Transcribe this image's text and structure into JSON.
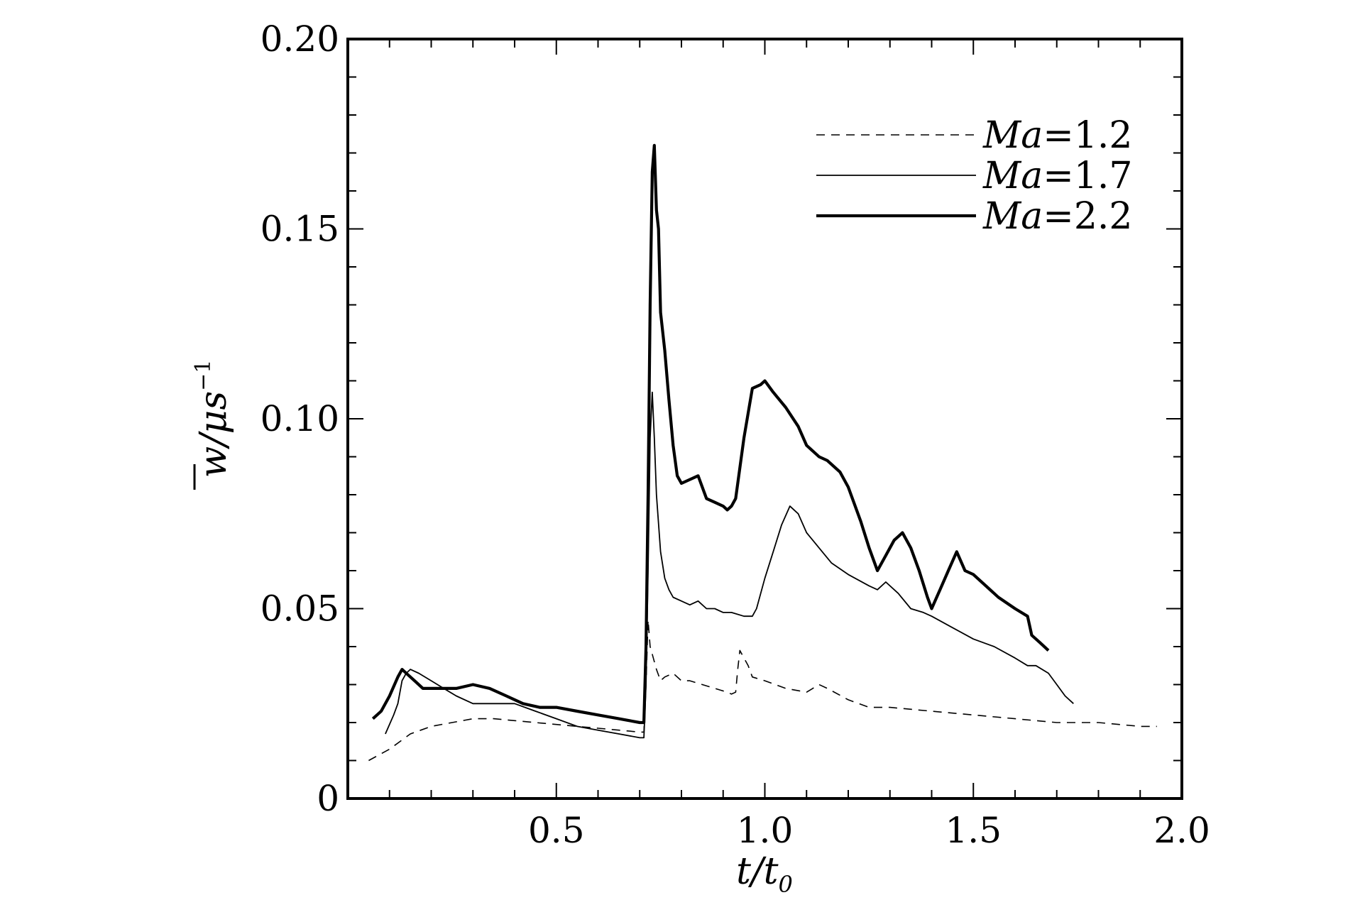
{
  "chart_data": {
    "type": "line",
    "xlabel": {
      "main": "t/t",
      "sub": "0"
    },
    "ylabel": {
      "main": "w/μs",
      "sup": "−1",
      "overbar_char": "w"
    },
    "xlim": [
      0,
      2.0
    ],
    "ylim": [
      0,
      0.2
    ],
    "x_ticks": [
      {
        "value": 0.5,
        "label": "0.5"
      },
      {
        "value": 1.0,
        "label": "1.0"
      },
      {
        "value": 1.5,
        "label": "1.5"
      },
      {
        "value": 2.0,
        "label": "2.0"
      }
    ],
    "y_ticks": [
      {
        "value": 0,
        "label": "0"
      },
      {
        "value": 0.05,
        "label": "0.05"
      },
      {
        "value": 0.1,
        "label": "0.10"
      },
      {
        "value": 0.15,
        "label": "0.15"
      },
      {
        "value": 0.2,
        "label": "0.20"
      }
    ],
    "x_minor_step": 0.1,
    "y_minor_step": 0.01,
    "grid": false,
    "legend_position": "top-right",
    "series": [
      {
        "name": "Ma=1.2",
        "name_italic": "Ma",
        "name_rest": "=1.2",
        "style": "dashed",
        "width": 1.6,
        "points": [
          [
            0.05,
            0.01
          ],
          [
            0.1,
            0.013
          ],
          [
            0.15,
            0.017
          ],
          [
            0.2,
            0.019
          ],
          [
            0.25,
            0.02
          ],
          [
            0.3,
            0.021
          ],
          [
            0.35,
            0.021
          ],
          [
            0.4,
            0.0205
          ],
          [
            0.45,
            0.02
          ],
          [
            0.5,
            0.0195
          ],
          [
            0.55,
            0.019
          ],
          [
            0.6,
            0.0185
          ],
          [
            0.65,
            0.018
          ],
          [
            0.7,
            0.0175
          ],
          [
            0.71,
            0.0175
          ],
          [
            0.715,
            0.03
          ],
          [
            0.72,
            0.047
          ],
          [
            0.725,
            0.04
          ],
          [
            0.73,
            0.038
          ],
          [
            0.74,
            0.034
          ],
          [
            0.75,
            0.031
          ],
          [
            0.76,
            0.032
          ],
          [
            0.78,
            0.033
          ],
          [
            0.8,
            0.031
          ],
          [
            0.82,
            0.031
          ],
          [
            0.85,
            0.03
          ],
          [
            0.88,
            0.029
          ],
          [
            0.91,
            0.028
          ],
          [
            0.92,
            0.0275
          ],
          [
            0.93,
            0.028
          ],
          [
            0.935,
            0.034
          ],
          [
            0.94,
            0.039
          ],
          [
            0.95,
            0.037
          ],
          [
            0.96,
            0.035
          ],
          [
            0.97,
            0.032
          ],
          [
            1.0,
            0.031
          ],
          [
            1.05,
            0.029
          ],
          [
            1.1,
            0.028
          ],
          [
            1.13,
            0.03
          ],
          [
            1.15,
            0.029
          ],
          [
            1.2,
            0.026
          ],
          [
            1.25,
            0.024
          ],
          [
            1.3,
            0.024
          ],
          [
            1.4,
            0.023
          ],
          [
            1.5,
            0.022
          ],
          [
            1.6,
            0.021
          ],
          [
            1.7,
            0.02
          ],
          [
            1.8,
            0.02
          ],
          [
            1.9,
            0.019
          ],
          [
            1.94,
            0.019
          ]
        ]
      },
      {
        "name": "Ma=1.7",
        "name_italic": "Ma",
        "name_rest": "=1.7",
        "style": "solid",
        "width": 1.8,
        "points": [
          [
            0.09,
            0.017
          ],
          [
            0.11,
            0.022
          ],
          [
            0.12,
            0.025
          ],
          [
            0.13,
            0.031
          ],
          [
            0.14,
            0.033
          ],
          [
            0.15,
            0.034
          ],
          [
            0.17,
            0.033
          ],
          [
            0.2,
            0.031
          ],
          [
            0.23,
            0.029
          ],
          [
            0.26,
            0.027
          ],
          [
            0.3,
            0.025
          ],
          [
            0.35,
            0.025
          ],
          [
            0.4,
            0.025
          ],
          [
            0.45,
            0.023
          ],
          [
            0.5,
            0.021
          ],
          [
            0.55,
            0.019
          ],
          [
            0.6,
            0.018
          ],
          [
            0.65,
            0.017
          ],
          [
            0.7,
            0.016
          ],
          [
            0.71,
            0.016
          ],
          [
            0.715,
            0.03
          ],
          [
            0.72,
            0.06
          ],
          [
            0.725,
            0.095
          ],
          [
            0.73,
            0.107
          ],
          [
            0.735,
            0.095
          ],
          [
            0.74,
            0.08
          ],
          [
            0.75,
            0.065
          ],
          [
            0.76,
            0.058
          ],
          [
            0.77,
            0.055
          ],
          [
            0.78,
            0.053
          ],
          [
            0.8,
            0.052
          ],
          [
            0.82,
            0.051
          ],
          [
            0.84,
            0.052
          ],
          [
            0.86,
            0.05
          ],
          [
            0.88,
            0.05
          ],
          [
            0.9,
            0.049
          ],
          [
            0.92,
            0.049
          ],
          [
            0.95,
            0.048
          ],
          [
            0.97,
            0.048
          ],
          [
            0.98,
            0.05
          ],
          [
            1.0,
            0.058
          ],
          [
            1.02,
            0.065
          ],
          [
            1.04,
            0.072
          ],
          [
            1.06,
            0.077
          ],
          [
            1.08,
            0.075
          ],
          [
            1.1,
            0.07
          ],
          [
            1.13,
            0.066
          ],
          [
            1.16,
            0.062
          ],
          [
            1.2,
            0.059
          ],
          [
            1.25,
            0.056
          ],
          [
            1.27,
            0.055
          ],
          [
            1.29,
            0.057
          ],
          [
            1.32,
            0.054
          ],
          [
            1.35,
            0.05
          ],
          [
            1.38,
            0.049
          ],
          [
            1.4,
            0.048
          ],
          [
            1.45,
            0.045
          ],
          [
            1.5,
            0.042
          ],
          [
            1.55,
            0.04
          ],
          [
            1.6,
            0.037
          ],
          [
            1.63,
            0.035
          ],
          [
            1.65,
            0.035
          ],
          [
            1.68,
            0.033
          ],
          [
            1.7,
            0.03
          ],
          [
            1.72,
            0.027
          ],
          [
            1.74,
            0.025
          ]
        ]
      },
      {
        "name": "Ma=2.2",
        "name_italic": "Ma",
        "name_rest": "=2.2",
        "style": "solid",
        "width": 4.2,
        "points": [
          [
            0.06,
            0.021
          ],
          [
            0.08,
            0.023
          ],
          [
            0.1,
            0.027
          ],
          [
            0.12,
            0.032
          ],
          [
            0.13,
            0.034
          ],
          [
            0.14,
            0.033
          ],
          [
            0.16,
            0.031
          ],
          [
            0.18,
            0.029
          ],
          [
            0.22,
            0.029
          ],
          [
            0.26,
            0.029
          ],
          [
            0.3,
            0.03
          ],
          [
            0.34,
            0.029
          ],
          [
            0.38,
            0.027
          ],
          [
            0.42,
            0.025
          ],
          [
            0.46,
            0.024
          ],
          [
            0.5,
            0.024
          ],
          [
            0.55,
            0.023
          ],
          [
            0.6,
            0.022
          ],
          [
            0.65,
            0.021
          ],
          [
            0.7,
            0.02
          ],
          [
            0.71,
            0.02
          ],
          [
            0.715,
            0.04
          ],
          [
            0.72,
            0.08
          ],
          [
            0.725,
            0.13
          ],
          [
            0.73,
            0.165
          ],
          [
            0.735,
            0.172
          ],
          [
            0.74,
            0.155
          ],
          [
            0.745,
            0.15
          ],
          [
            0.75,
            0.128
          ],
          [
            0.76,
            0.118
          ],
          [
            0.77,
            0.105
          ],
          [
            0.78,
            0.093
          ],
          [
            0.79,
            0.085
          ],
          [
            0.8,
            0.083
          ],
          [
            0.82,
            0.084
          ],
          [
            0.84,
            0.085
          ],
          [
            0.86,
            0.079
          ],
          [
            0.88,
            0.078
          ],
          [
            0.9,
            0.077
          ],
          [
            0.91,
            0.076
          ],
          [
            0.92,
            0.077
          ],
          [
            0.93,
            0.079
          ],
          [
            0.95,
            0.095
          ],
          [
            0.97,
            0.108
          ],
          [
            0.99,
            0.109
          ],
          [
            1.0,
            0.11
          ],
          [
            1.02,
            0.107
          ],
          [
            1.05,
            0.103
          ],
          [
            1.08,
            0.098
          ],
          [
            1.1,
            0.093
          ],
          [
            1.13,
            0.09
          ],
          [
            1.15,
            0.089
          ],
          [
            1.18,
            0.086
          ],
          [
            1.2,
            0.082
          ],
          [
            1.23,
            0.073
          ],
          [
            1.25,
            0.066
          ],
          [
            1.27,
            0.06
          ],
          [
            1.29,
            0.064
          ],
          [
            1.31,
            0.068
          ],
          [
            1.33,
            0.07
          ],
          [
            1.35,
            0.066
          ],
          [
            1.37,
            0.06
          ],
          [
            1.39,
            0.053
          ],
          [
            1.4,
            0.05
          ],
          [
            1.42,
            0.055
          ],
          [
            1.44,
            0.06
          ],
          [
            1.46,
            0.065
          ],
          [
            1.48,
            0.06
          ],
          [
            1.5,
            0.059
          ],
          [
            1.53,
            0.056
          ],
          [
            1.56,
            0.053
          ],
          [
            1.6,
            0.05
          ],
          [
            1.63,
            0.048
          ],
          [
            1.64,
            0.043
          ],
          [
            1.66,
            0.041
          ],
          [
            1.68,
            0.039
          ]
        ]
      }
    ]
  }
}
